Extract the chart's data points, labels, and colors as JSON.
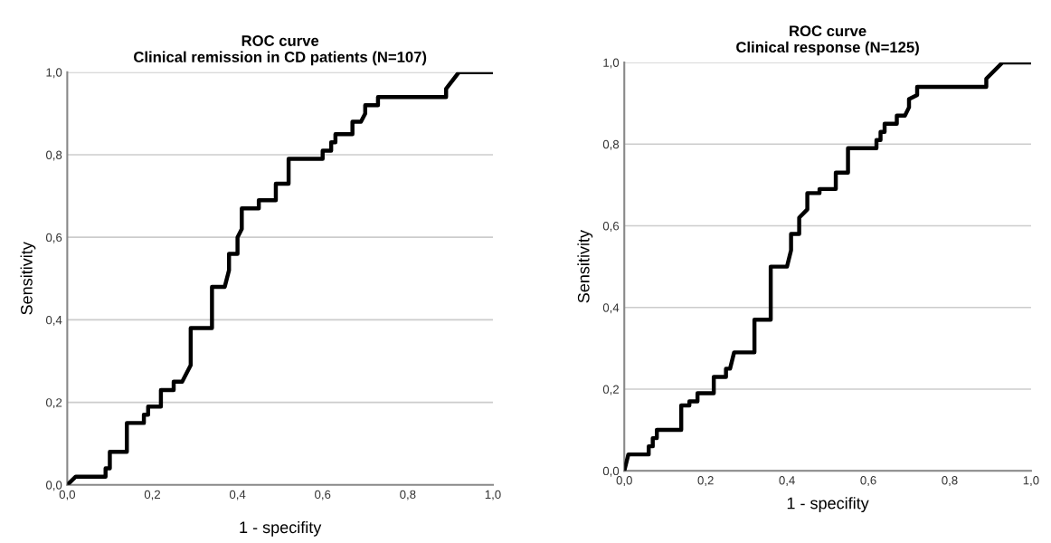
{
  "chart_data": [
    {
      "type": "line",
      "title": "ROC curve\nClinical remission in CD patients (N=107)",
      "xlabel": "1 - specifity",
      "ylabel": "Sensitivity",
      "xlim": [
        0,
        1
      ],
      "ylim": [
        0,
        1
      ],
      "xticks": [
        {
          "value": 0,
          "label": "0,0"
        },
        {
          "value": 0.2,
          "label": "0,2"
        },
        {
          "value": 0.4,
          "label": "0,4"
        },
        {
          "value": 0.6,
          "label": "0,6"
        },
        {
          "value": 0.8,
          "label": "0,8"
        },
        {
          "value": 1,
          "label": "1,0"
        }
      ],
      "yticks": [
        {
          "value": 0,
          "label": "0,0"
        },
        {
          "value": 0.2,
          "label": "0,2"
        },
        {
          "value": 0.4,
          "label": "0,4"
        },
        {
          "value": 0.6,
          "label": "0,6"
        },
        {
          "value": 0.8,
          "label": "0,8"
        },
        {
          "value": 1,
          "label": "1,0"
        }
      ],
      "grid": "y",
      "marker": "none",
      "line_style": "solid",
      "series": [
        {
          "color": "#000000",
          "x": [
            0,
            0.02,
            0.09,
            0.09,
            0.1,
            0.1,
            0.14,
            0.14,
            0.18,
            0.18,
            0.19,
            0.19,
            0.22,
            0.22,
            0.25,
            0.25,
            0.27,
            0.29,
            0.29,
            0.34,
            0.34,
            0.37,
            0.38,
            0.38,
            0.4,
            0.4,
            0.41,
            0.41,
            0.45,
            0.45,
            0.49,
            0.49,
            0.52,
            0.52,
            0.6,
            0.6,
            0.62,
            0.62,
            0.63,
            0.63,
            0.67,
            0.67,
            0.69,
            0.7,
            0.7,
            0.73,
            0.73,
            0.89,
            0.89,
            0.92,
            1.0
          ],
          "values": [
            0,
            0.02,
            0.02,
            0.04,
            0.04,
            0.08,
            0.08,
            0.15,
            0.15,
            0.17,
            0.17,
            0.19,
            0.19,
            0.23,
            0.23,
            0.25,
            0.25,
            0.29,
            0.38,
            0.38,
            0.48,
            0.48,
            0.52,
            0.56,
            0.56,
            0.6,
            0.62,
            0.67,
            0.67,
            0.69,
            0.69,
            0.73,
            0.73,
            0.79,
            0.79,
            0.81,
            0.81,
            0.83,
            0.83,
            0.85,
            0.85,
            0.88,
            0.88,
            0.9,
            0.92,
            0.92,
            0.94,
            0.94,
            0.96,
            1.0,
            1.0
          ]
        }
      ]
    },
    {
      "type": "line",
      "title": "ROC curve\nClinical response (N=125)",
      "xlabel": "1 - specifity",
      "ylabel": "Sensitivity",
      "xlim": [
        0,
        1
      ],
      "ylim": [
        0,
        1
      ],
      "xticks": [
        {
          "value": 0,
          "label": "0,0"
        },
        {
          "value": 0.2,
          "label": "0,2"
        },
        {
          "value": 0.4,
          "label": "0,4"
        },
        {
          "value": 0.6,
          "label": "0,6"
        },
        {
          "value": 0.8,
          "label": "0,8"
        },
        {
          "value": 1,
          "label": "1,0"
        }
      ],
      "yticks": [
        {
          "value": 0,
          "label": "0,0"
        },
        {
          "value": 0.2,
          "label": "0,2"
        },
        {
          "value": 0.4,
          "label": "0,4"
        },
        {
          "value": 0.6,
          "label": "0,6"
        },
        {
          "value": 0.8,
          "label": "0,8"
        },
        {
          "value": 1,
          "label": "1,0"
        }
      ],
      "grid": "y",
      "marker": "none",
      "line_style": "solid",
      "series": [
        {
          "color": "#000000",
          "x": [
            0,
            0.01,
            0.06,
            0.06,
            0.07,
            0.07,
            0.08,
            0.08,
            0.14,
            0.14,
            0.16,
            0.16,
            0.18,
            0.18,
            0.22,
            0.22,
            0.25,
            0.25,
            0.26,
            0.27,
            0.32,
            0.32,
            0.36,
            0.36,
            0.4,
            0.41,
            0.41,
            0.43,
            0.43,
            0.45,
            0.45,
            0.48,
            0.48,
            0.52,
            0.52,
            0.55,
            0.55,
            0.62,
            0.62,
            0.63,
            0.63,
            0.64,
            0.64,
            0.67,
            0.67,
            0.69,
            0.7,
            0.7,
            0.72,
            0.72,
            0.89,
            0.89,
            0.93,
            1.0
          ],
          "values": [
            0,
            0.04,
            0.04,
            0.06,
            0.06,
            0.08,
            0.08,
            0.1,
            0.1,
            0.16,
            0.16,
            0.17,
            0.17,
            0.19,
            0.19,
            0.23,
            0.23,
            0.25,
            0.25,
            0.29,
            0.29,
            0.37,
            0.37,
            0.5,
            0.5,
            0.54,
            0.58,
            0.58,
            0.62,
            0.64,
            0.68,
            0.68,
            0.69,
            0.69,
            0.73,
            0.73,
            0.79,
            0.79,
            0.81,
            0.81,
            0.83,
            0.83,
            0.85,
            0.85,
            0.87,
            0.87,
            0.89,
            0.91,
            0.92,
            0.94,
            0.94,
            0.96,
            1.0,
            1.0
          ]
        }
      ]
    }
  ]
}
